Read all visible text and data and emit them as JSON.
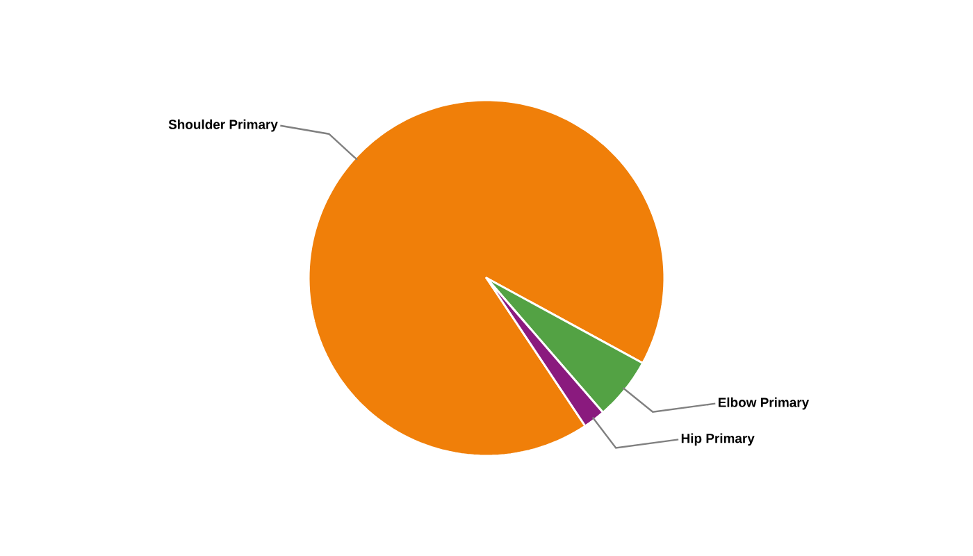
{
  "chart_data": {
    "type": "pie",
    "categories": [
      "Shoulder Primary",
      "Elbow Primary",
      "Hip Primary"
    ],
    "values": [
      92.3,
      5.7,
      2.0
    ],
    "colors": [
      "#f07f09",
      "#53a244",
      "#8a1a7e"
    ]
  }
}
